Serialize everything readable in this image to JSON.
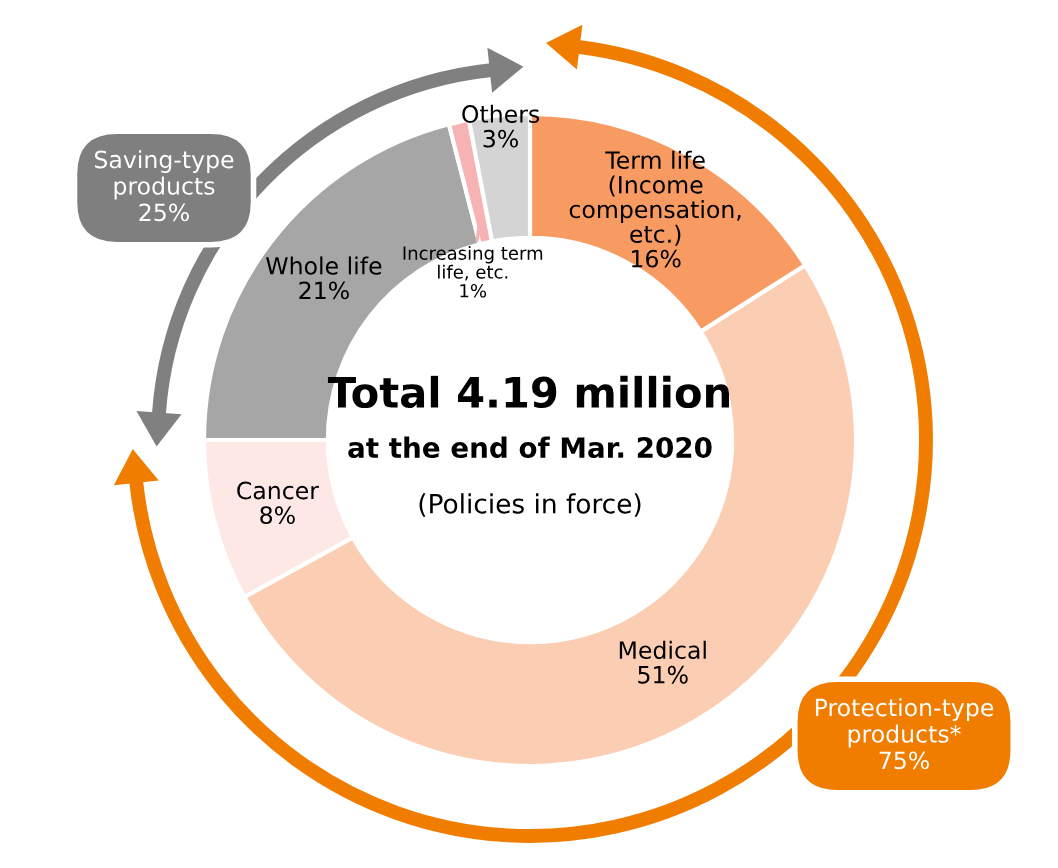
{
  "chart_data": {
    "type": "donut",
    "categories": [
      "Term life\n(Income\ncompensation,\netc.)",
      "Medical",
      "Cancer",
      "Whole life",
      "Increasing term\nlife, etc.",
      "Others"
    ],
    "values": [
      16,
      51,
      8,
      21,
      1,
      3
    ],
    "value_labels": [
      "16%",
      "51%",
      "8%",
      "21%",
      "1%",
      "3%"
    ],
    "colors": [
      "#f89b63",
      "#fbcdb3",
      "#fde8e6",
      "#a6a6a6",
      "#f7b3b3",
      "#d4d4d4"
    ],
    "title": "Total 4.19 million",
    "subtitle": "at the end of Mar. 2020",
    "annotations": [
      "(Policies in force)",
      "Saving-type\nproducts\n25%",
      "Protection-type\nproducts*\n75%"
    ]
  }
}
